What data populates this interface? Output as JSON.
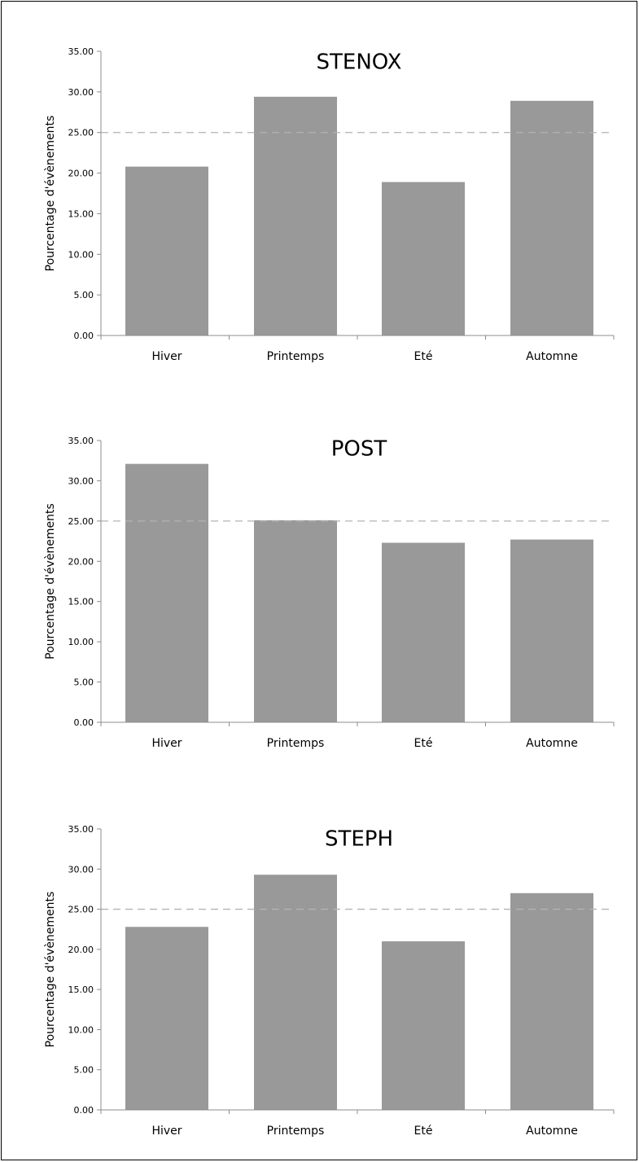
{
  "chart_data": [
    {
      "type": "bar",
      "title": "STENOX",
      "ylabel": "Pourcentage d'évènements",
      "categories": [
        "Hiver",
        "Printemps",
        "Eté",
        "Automne"
      ],
      "values": [
        20.8,
        29.4,
        18.9,
        28.9
      ],
      "ylim": [
        0,
        35
      ],
      "yticks": [
        "0.00",
        "5.00",
        "10.00",
        "15.00",
        "20.00",
        "25.00",
        "30.00",
        "35.00"
      ],
      "reference_line": 25,
      "bar_color": "#999999",
      "reference_color": "#b3b3b3",
      "grid": false
    },
    {
      "type": "bar",
      "title": "POST",
      "ylabel": "Pourcentage d'évènements",
      "categories": [
        "Hiver",
        "Printemps",
        "Eté",
        "Automne"
      ],
      "values": [
        32.1,
        25.1,
        22.3,
        22.7
      ],
      "ylim": [
        0,
        35
      ],
      "yticks": [
        "0.00",
        "5.00",
        "10.00",
        "15.00",
        "20.00",
        "25.00",
        "30.00",
        "35.00"
      ],
      "reference_line": 25,
      "bar_color": "#999999",
      "reference_color": "#b3b3b3",
      "grid": false
    },
    {
      "type": "bar",
      "title": "STEPH",
      "ylabel": "Pourcentage d'évènements",
      "categories": [
        "Hiver",
        "Printemps",
        "Eté",
        "Automne"
      ],
      "values": [
        22.8,
        29.3,
        21.0,
        27.0
      ],
      "ylim": [
        0,
        35
      ],
      "yticks": [
        "0.00",
        "5.00",
        "10.00",
        "15.00",
        "20.00",
        "25.00",
        "30.00",
        "35.00"
      ],
      "reference_line": 25,
      "bar_color": "#999999",
      "reference_color": "#b3b3b3",
      "grid": false
    }
  ]
}
